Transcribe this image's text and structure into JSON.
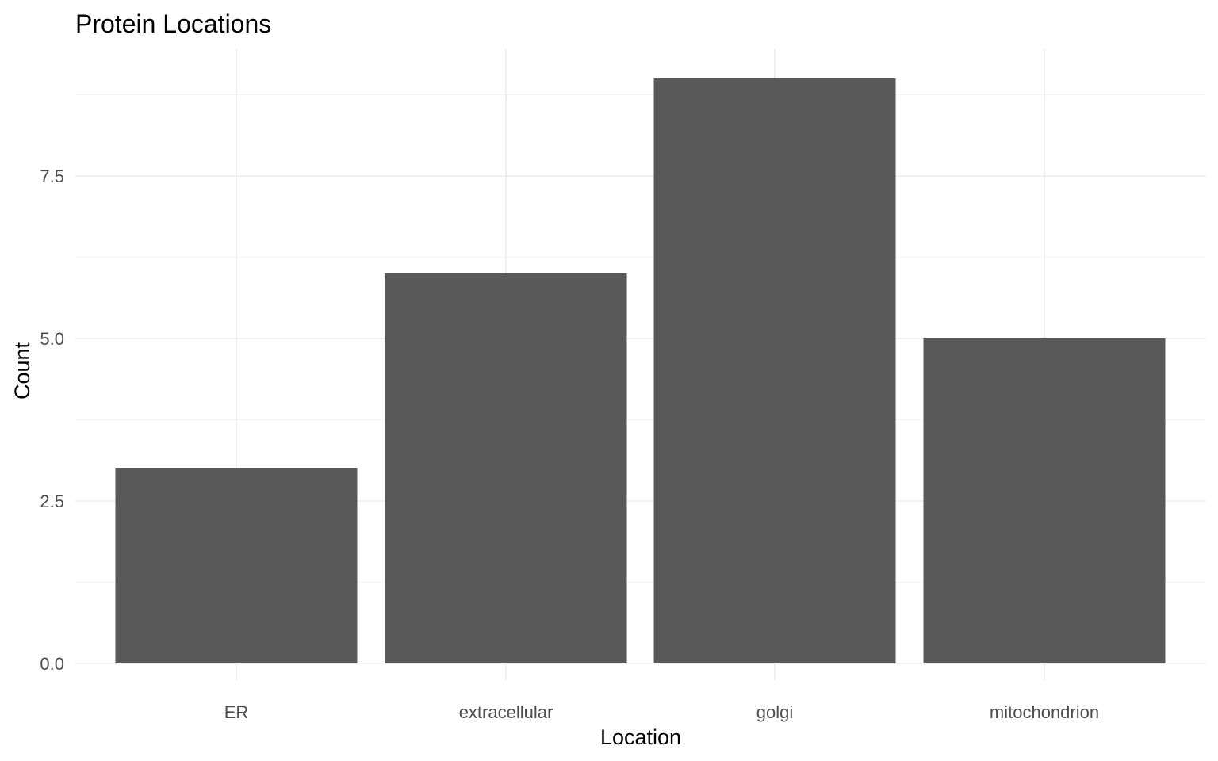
{
  "chart_data": {
    "type": "bar",
    "title": "Protein Locations",
    "xlabel": "Location",
    "ylabel": "Count",
    "categories": [
      "ER",
      "extracellular",
      "golgi",
      "mitochondrion"
    ],
    "values": [
      3,
      6,
      9,
      5
    ],
    "ylim": [
      0,
      9.45
    ],
    "yticks": [
      0,
      2.5,
      5,
      7.5
    ],
    "ytick_labels": [
      "0.0",
      "2.5",
      "5.0",
      "7.5"
    ],
    "grid": true,
    "legend": "none",
    "colors": {
      "bar": "#595959",
      "grid_major": "#ebebeb",
      "grid_minor": "#f3f3f3",
      "background": "#ffffff"
    }
  }
}
